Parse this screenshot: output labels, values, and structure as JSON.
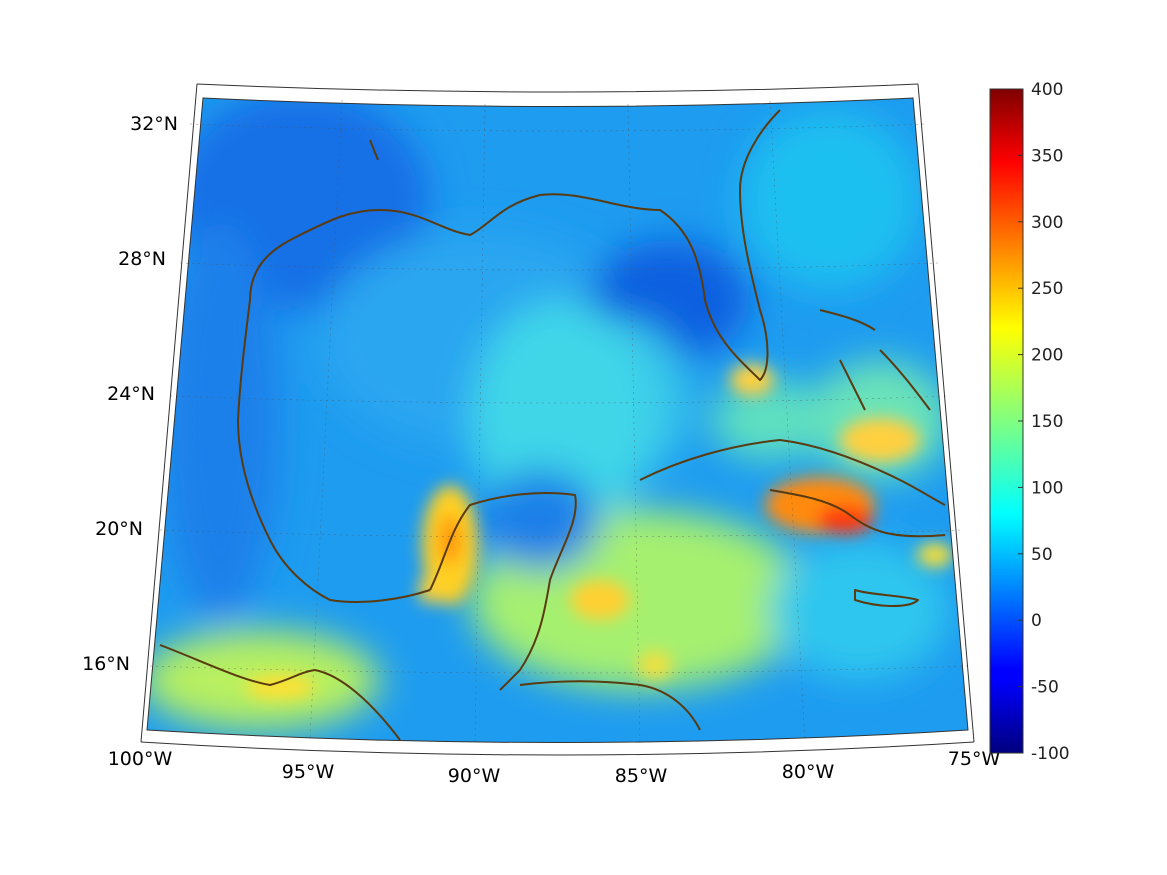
{
  "map": {
    "lat_labels": [
      "32°N",
      "28°N",
      "24°N",
      "20°N",
      "16°N"
    ],
    "lon_labels": [
      "100°W",
      "95°W",
      "90°W",
      "85°W",
      "80°W",
      "75°W"
    ],
    "extent": {
      "lon_min": -100,
      "lon_max": -75,
      "lat_min": 14,
      "lat_max": 32.5
    },
    "coastline_color": "#5a3a10",
    "graticule": true
  },
  "colorbar": {
    "min": -100,
    "max": 400,
    "tick_labels": [
      "400",
      "350",
      "300",
      "250",
      "200",
      "150",
      "100",
      "50",
      "0",
      "-50",
      "-100"
    ],
    "colormap": "jet"
  }
}
